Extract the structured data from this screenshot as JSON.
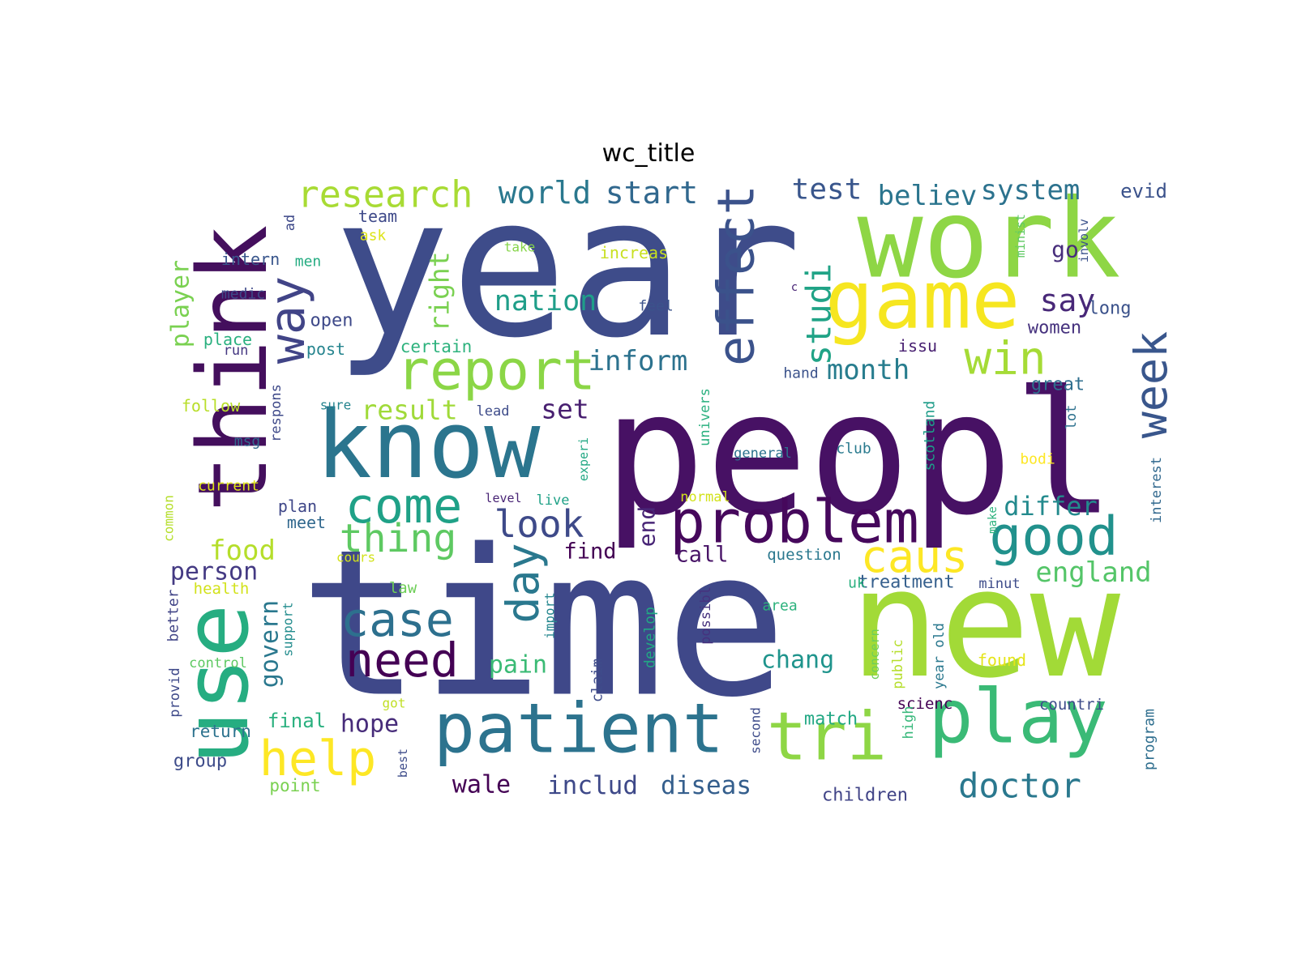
{
  "title": "wc_title",
  "words": [
    {
      "text": "year",
      "color": "#3e4c8a"
    },
    {
      "text": "peopl",
      "color": "#471164"
    },
    {
      "text": "time",
      "color": "#3f4889"
    },
    {
      "text": "new",
      "color": "#a2da37"
    },
    {
      "text": "work",
      "color": "#8ed645"
    },
    {
      "text": "think",
      "color": "#440f5d"
    },
    {
      "text": "use",
      "color": "#26ad81"
    },
    {
      "text": "know",
      "color": "#2b758e"
    },
    {
      "text": "game",
      "color": "#f6e620"
    },
    {
      "text": "patient",
      "color": "#2c738e"
    },
    {
      "text": "play",
      "color": "#3aba76"
    },
    {
      "text": "problem",
      "color": "#46085c"
    },
    {
      "text": "report",
      "color": "#8bd646"
    },
    {
      "text": "tri",
      "color": "#8ed645"
    },
    {
      "text": "effect",
      "color": "#3b528b"
    },
    {
      "text": "good",
      "color": "#21918c"
    },
    {
      "text": "win",
      "color": "#a5db36"
    },
    {
      "text": "week",
      "color": "#39568c"
    },
    {
      "text": "caus",
      "color": "#fde725"
    },
    {
      "text": "come",
      "color": "#1fa187"
    },
    {
      "text": "case",
      "color": "#2d708e"
    },
    {
      "text": "need",
      "color": "#440154"
    },
    {
      "text": "day",
      "color": "#2a788e"
    },
    {
      "text": "help",
      "color": "#fde725"
    },
    {
      "text": "way",
      "color": "#414487"
    },
    {
      "text": "thing",
      "color": "#5ec962"
    },
    {
      "text": "look",
      "color": "#3e4a89"
    },
    {
      "text": "research",
      "color": "#a8db34"
    },
    {
      "text": "doctor",
      "color": "#2a788e"
    },
    {
      "text": "studi",
      "color": "#20a386"
    },
    {
      "text": "world",
      "color": "#2a788e"
    },
    {
      "text": "start",
      "color": "#31688e"
    },
    {
      "text": "test",
      "color": "#39568c"
    },
    {
      "text": "believ",
      "color": "#2b758e"
    },
    {
      "text": "system",
      "color": "#2c728e"
    },
    {
      "text": "evid",
      "color": "#3b528b"
    },
    {
      "text": "say",
      "color": "#482878"
    },
    {
      "text": "nation",
      "color": "#1f9e89"
    },
    {
      "text": "inform",
      "color": "#2c728e"
    },
    {
      "text": "month",
      "color": "#287d8e"
    },
    {
      "text": "result",
      "color": "#a0da39"
    },
    {
      "text": "set",
      "color": "#481f70"
    },
    {
      "text": "differ",
      "color": "#238a8d"
    },
    {
      "text": "england",
      "color": "#54c568"
    },
    {
      "text": "right",
      "color": "#7ad151"
    },
    {
      "text": "player",
      "color": "#7ad151"
    },
    {
      "text": "food",
      "color": "#b5de2b"
    },
    {
      "text": "person",
      "color": "#443a83"
    },
    {
      "text": "govern",
      "color": "#2a788e"
    },
    {
      "text": "pain",
      "color": "#3bbb75"
    },
    {
      "text": "chang",
      "color": "#1f948c"
    },
    {
      "text": "hope",
      "color": "#472c7a"
    },
    {
      "text": "wale",
      "color": "#440154"
    },
    {
      "text": "includ",
      "color": "#3e4989"
    },
    {
      "text": "diseas",
      "color": "#355f8d"
    },
    {
      "text": "find",
      "color": "#440154"
    },
    {
      "text": "call",
      "color": "#481467"
    },
    {
      "text": "end",
      "color": "#482576"
    },
    {
      "text": "go",
      "color": "#472d7b"
    },
    {
      "text": "long",
      "color": "#3b528b"
    },
    {
      "text": "women",
      "color": "#46327e"
    },
    {
      "text": "great",
      "color": "#2e6e8e"
    },
    {
      "text": "treatment",
      "color": "#355f8d"
    },
    {
      "text": "children",
      "color": "#414487"
    },
    {
      "text": "match",
      "color": "#22a884"
    },
    {
      "text": "final",
      "color": "#2ab07f"
    },
    {
      "text": "group",
      "color": "#3e4c8a"
    },
    {
      "text": "point",
      "color": "#7ad151"
    },
    {
      "text": "return",
      "color": "#2c728e"
    },
    {
      "text": "team",
      "color": "#3e4989"
    },
    {
      "text": "ask",
      "color": "#dde318"
    },
    {
      "text": "intern",
      "color": "#39568c"
    },
    {
      "text": "men",
      "color": "#25ac82"
    },
    {
      "text": "medic",
      "color": "#3e4989"
    },
    {
      "text": "open",
      "color": "#3e4989"
    },
    {
      "text": "place",
      "color": "#2ab07f"
    },
    {
      "text": "run",
      "color": "#453882"
    },
    {
      "text": "post",
      "color": "#25848e"
    },
    {
      "text": "certain",
      "color": "#2db27d"
    },
    {
      "text": "follow",
      "color": "#b8de29"
    },
    {
      "text": "sure",
      "color": "#25848e"
    },
    {
      "text": "lead",
      "color": "#3e4c8a"
    },
    {
      "text": "msg",
      "color": "#31688e"
    },
    {
      "text": "current",
      "color": "#dde318"
    },
    {
      "text": "plan",
      "color": "#3f4788"
    },
    {
      "text": "meet",
      "color": "#31688e"
    },
    {
      "text": "level",
      "color": "#482475"
    },
    {
      "text": "live",
      "color": "#1fa187"
    },
    {
      "text": "normal",
      "color": "#d2e21b"
    },
    {
      "text": "cours",
      "color": "#d2e21b"
    },
    {
      "text": "question",
      "color": "#2a788e"
    },
    {
      "text": "health",
      "color": "#d2e21b"
    },
    {
      "text": "law",
      "color": "#6ece58"
    },
    {
      "text": "area",
      "color": "#2db27d"
    },
    {
      "text": "control",
      "color": "#5ec962"
    },
    {
      "text": "got",
      "color": "#c0df25"
    },
    {
      "text": "scienc",
      "color": "#440154"
    },
    {
      "text": "countri",
      "color": "#3e4c8a"
    },
    {
      "text": "found",
      "color": "#e5e419"
    },
    {
      "text": "minut",
      "color": "#3e4c8a"
    },
    {
      "text": "uk",
      "color": "#2ab07f"
    },
    {
      "text": "take",
      "color": "#86d549"
    },
    {
      "text": "increas",
      "color": "#c8e020"
    },
    {
      "text": "feel",
      "color": "#3b528b"
    },
    {
      "text": "issu",
      "color": "#482071"
    },
    {
      "text": "hand",
      "color": "#3b528b"
    },
    {
      "text": "club",
      "color": "#297a8e"
    },
    {
      "text": "general",
      "color": "#2c728e"
    },
    {
      "text": "bodi",
      "color": "#fde725"
    },
    {
      "text": "c",
      "color": "#482475"
    },
    {
      "text": "ad",
      "color": "#3e4989"
    },
    {
      "text": "respons",
      "color": "#3e4989"
    },
    {
      "text": "common",
      "color": "#b5de2b"
    },
    {
      "text": "better",
      "color": "#414487"
    },
    {
      "text": "provid",
      "color": "#3e4989"
    },
    {
      "text": "support",
      "color": "#228c8d"
    },
    {
      "text": "experi",
      "color": "#22a884"
    },
    {
      "text": "univers",
      "color": "#2ab07f"
    },
    {
      "text": "import",
      "color": "#24868e"
    },
    {
      "text": "claim",
      "color": "#3e4c8a"
    },
    {
      "text": "develop",
      "color": "#22a884"
    },
    {
      "text": "possibl",
      "color": "#46327e"
    },
    {
      "text": "best",
      "color": "#3e4c8a"
    },
    {
      "text": "second",
      "color": "#3e4c8a"
    },
    {
      "text": "concern",
      "color": "#6ece58"
    },
    {
      "text": "public",
      "color": "#b5de2b"
    },
    {
      "text": "year old",
      "color": "#2a788e"
    },
    {
      "text": "high",
      "color": "#35b779"
    },
    {
      "text": "scotland",
      "color": "#1e9c89"
    },
    {
      "text": "lot",
      "color": "#2d718e"
    },
    {
      "text": "minist",
      "color": "#5ec962"
    },
    {
      "text": "involv",
      "color": "#3b528b"
    },
    {
      "text": "make",
      "color": "#2db27d"
    },
    {
      "text": "interest",
      "color": "#31688e"
    },
    {
      "text": "program",
      "color": "#2e6e8e"
    }
  ]
}
